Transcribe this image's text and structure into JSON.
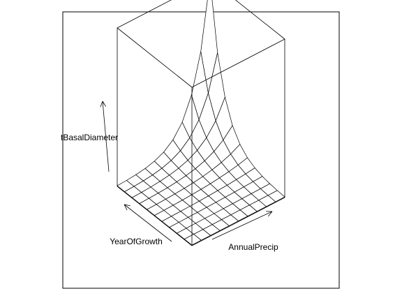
{
  "chart_data": {
    "type": "surface",
    "title": "",
    "xlabel": "YearOfGrowth",
    "ylabel": "AnnualPrecip",
    "zlabel": "tBasalDiameter",
    "grid_lines": 10,
    "box": true,
    "axes_arrows": true,
    "surface_shape": "exponential rise; near zero over most of the grid, sharply increasing toward the far back corner",
    "colors": {
      "line": "#000000",
      "background": "#ffffff",
      "surface_fill": "#ffffff"
    }
  }
}
